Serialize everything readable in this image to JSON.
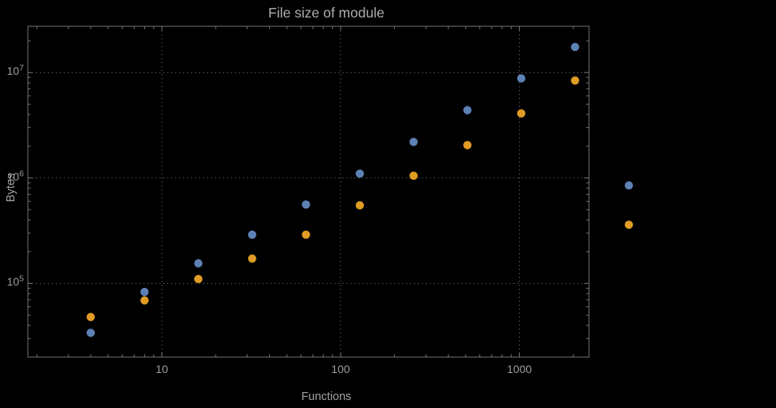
{
  "chart_data": {
    "type": "scatter",
    "title": "File size of module",
    "xlabel": "Functions",
    "ylabel": "Bytes",
    "x_scale": "log",
    "y_scale": "log",
    "xlim": [
      1.78,
      2450
    ],
    "ylim": [
      20000,
      27500000
    ],
    "grid": "dotted at major ticks",
    "legend": "none",
    "x_major_ticks": [
      10,
      100,
      1000
    ],
    "x_major_tick_labels": [
      "10",
      "100",
      "1000"
    ],
    "y_major_ticks": [
      100000,
      1000000,
      10000000
    ],
    "y_major_tick_labels": [
      {
        "base": "10",
        "exp": "5"
      },
      {
        "base": "10",
        "exp": "6"
      },
      {
        "base": "10",
        "exp": "7"
      }
    ],
    "x": [
      4,
      8,
      16,
      32,
      64,
      128,
      256,
      512,
      1024,
      2048,
      4096
    ],
    "series": [
      {
        "name": "series-blue",
        "color": "#5e81b5",
        "values": [
          34000,
          83000,
          155000,
          290000,
          560000,
          1100000,
          2200000,
          4400000,
          8800000,
          17500000,
          850000
        ]
      },
      {
        "name": "series-orange",
        "color": "#e09c24",
        "values": [
          48000,
          69000,
          110000,
          172000,
          290000,
          550000,
          1050000,
          2050000,
          4100000,
          8400000,
          360000
        ]
      }
    ]
  }
}
